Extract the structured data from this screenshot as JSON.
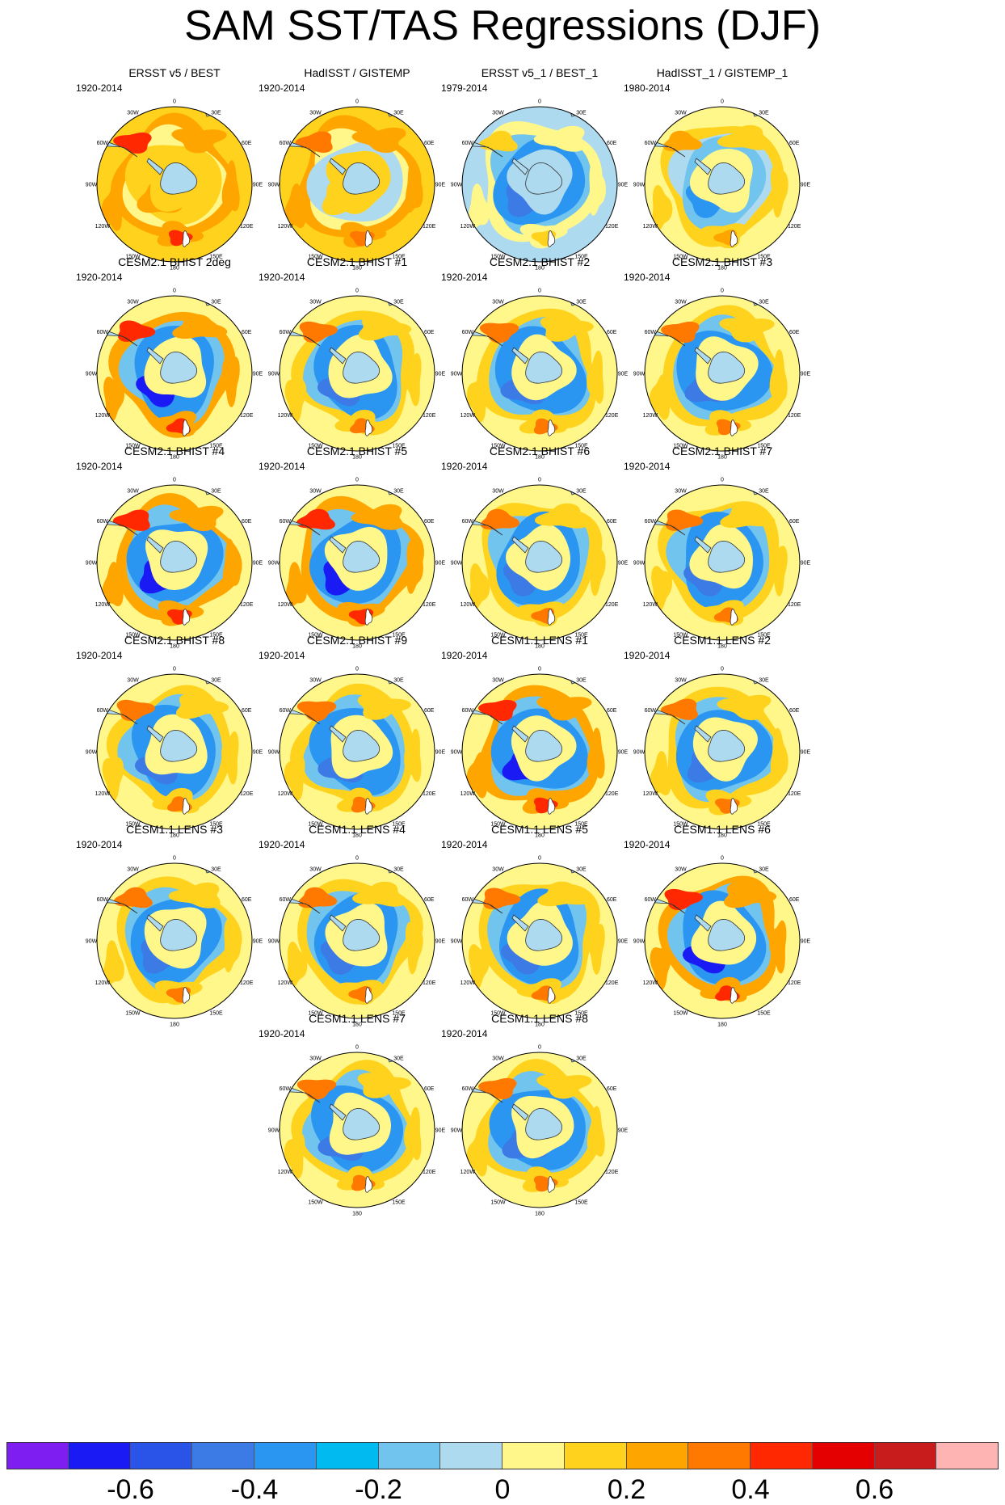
{
  "title": "SAM SST/TAS Regressions (DJF)",
  "longitude_labels": [
    "0",
    "30E",
    "60E",
    "90E",
    "120E",
    "150E",
    "180",
    "150W",
    "120W",
    "90W",
    "60W",
    "30W"
  ],
  "panels": [
    {
      "title": "ERSST v5 / BEST",
      "period": "1920-2014",
      "style": "obs_warm"
    },
    {
      "title": "HadISST / GISTEMP",
      "period": "1920-2014",
      "style": "obs_warm2"
    },
    {
      "title": "ERSST v5_1 / BEST_1",
      "period": "1979-2014",
      "style": "obs_cool"
    },
    {
      "title": "HadISST_1 / GISTEMP_1",
      "period": "1980-2014",
      "style": "obs_mixed"
    },
    {
      "title": "CESM2.1 BHIST 2deg",
      "period": "1920-2014",
      "style": "model_strong"
    },
    {
      "title": "CESM2.1 BHIST #1",
      "period": "1920-2014",
      "style": "model"
    },
    {
      "title": "CESM2.1 BHIST #2",
      "period": "1920-2014",
      "style": "model"
    },
    {
      "title": "CESM2.1 BHIST #3",
      "period": "1920-2014",
      "style": "model"
    },
    {
      "title": "CESM2.1 BHIST #4",
      "period": "1920-2014",
      "style": "model_strong"
    },
    {
      "title": "CESM2.1 BHIST #5",
      "period": "1920-2014",
      "style": "model_strong"
    },
    {
      "title": "CESM2.1 BHIST #6",
      "period": "1920-2014",
      "style": "model"
    },
    {
      "title": "CESM2.1 BHIST #7",
      "period": "1920-2014",
      "style": "model"
    },
    {
      "title": "CESM2.1 BHIST #8",
      "period": "1920-2014",
      "style": "model"
    },
    {
      "title": "CESM2.1 BHIST #9",
      "period": "1920-2014",
      "style": "model"
    },
    {
      "title": "CESM1.1 LENS #1",
      "period": "1920-2014",
      "style": "model_strong"
    },
    {
      "title": "CESM1.1 LENS #2",
      "period": "1920-2014",
      "style": "model"
    },
    {
      "title": "CESM1.1 LENS #3",
      "period": "1920-2014",
      "style": "model"
    },
    {
      "title": "CESM1.1 LENS #4",
      "period": "1920-2014",
      "style": "model"
    },
    {
      "title": "CESM1.1 LENS #5",
      "period": "1920-2014",
      "style": "model"
    },
    {
      "title": "CESM1.1 LENS #6",
      "period": "1920-2014",
      "style": "model_strong"
    },
    {
      "title": "CESM1.1 LENS #7",
      "period": "1920-2014",
      "style": "model"
    },
    {
      "title": "CESM1.1 LENS #8",
      "period": "1920-2014",
      "style": "model"
    }
  ],
  "colorbar": {
    "colors": [
      "#7f1ef0",
      "#1a1af5",
      "#2a54e8",
      "#3c7ae6",
      "#2b96f2",
      "#00baf0",
      "#70c4ee",
      "#aedaf0",
      "#fff78a",
      "#ffd21e",
      "#ffa500",
      "#ff7800",
      "#ff2800",
      "#e40000",
      "#c81b1b",
      "#ffb4b4"
    ],
    "tick_labels": [
      "-0.6",
      "-0.4",
      "-0.2",
      "0",
      "0.2",
      "0.4",
      "0.6"
    ],
    "tick_boundary_index": [
      2,
      4,
      6,
      8,
      10,
      12,
      14
    ]
  }
}
